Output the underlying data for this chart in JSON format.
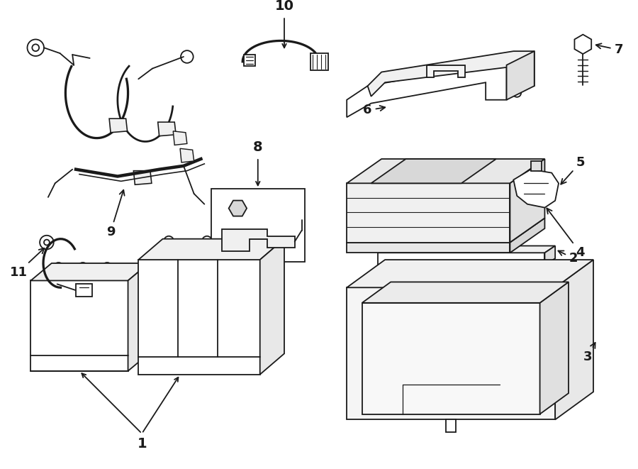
{
  "background_color": "#ffffff",
  "line_color": "#1a1a1a",
  "line_width": 1.3,
  "fig_width": 9.0,
  "fig_height": 6.61,
  "dpi": 100
}
